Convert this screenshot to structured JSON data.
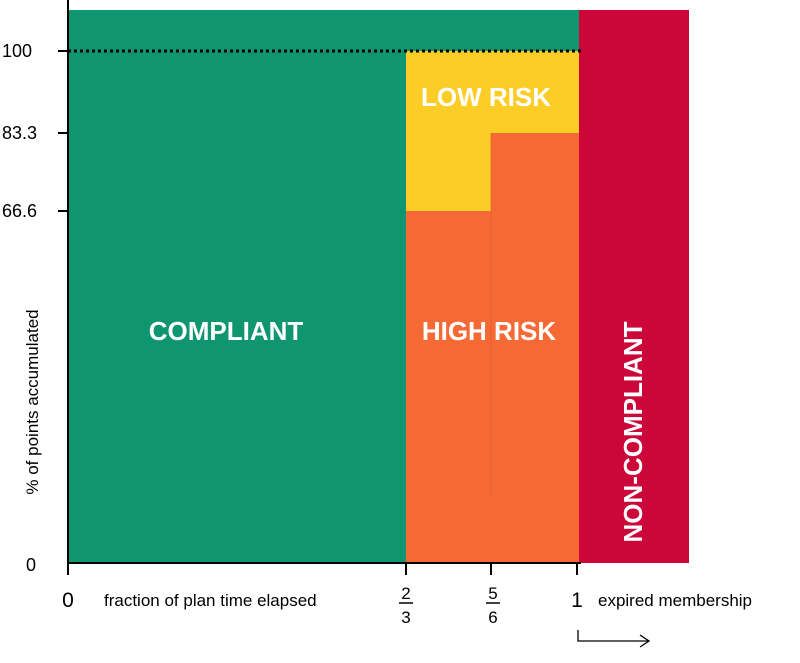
{
  "axes": {
    "ylabel": "% of points accumulated",
    "xlabel": "fraction of plan time elapsed",
    "expired_label": "expired membership",
    "y_ticks": [
      "0",
      "66.6",
      "83.3",
      "100"
    ],
    "x_ticks": {
      "zero": "0",
      "two_thirds": {
        "num": "2",
        "den": "3"
      },
      "five_sixths": {
        "num": "5",
        "den": "6"
      },
      "one": "1"
    }
  },
  "zones": {
    "compliant": "COMPLIANT",
    "low_risk": "LOW RISK",
    "high_risk": "HIGH RISK",
    "non_compliant": "NON-COMPLIANT"
  },
  "colors": {
    "compliant": "#0f9570",
    "low_risk": "#fccd26",
    "high_risk": "#f56935",
    "non_compliant": "#cc0639",
    "axis": "#000000"
  },
  "icons": {
    "expired_arrow": "right-arrow-icon"
  }
}
